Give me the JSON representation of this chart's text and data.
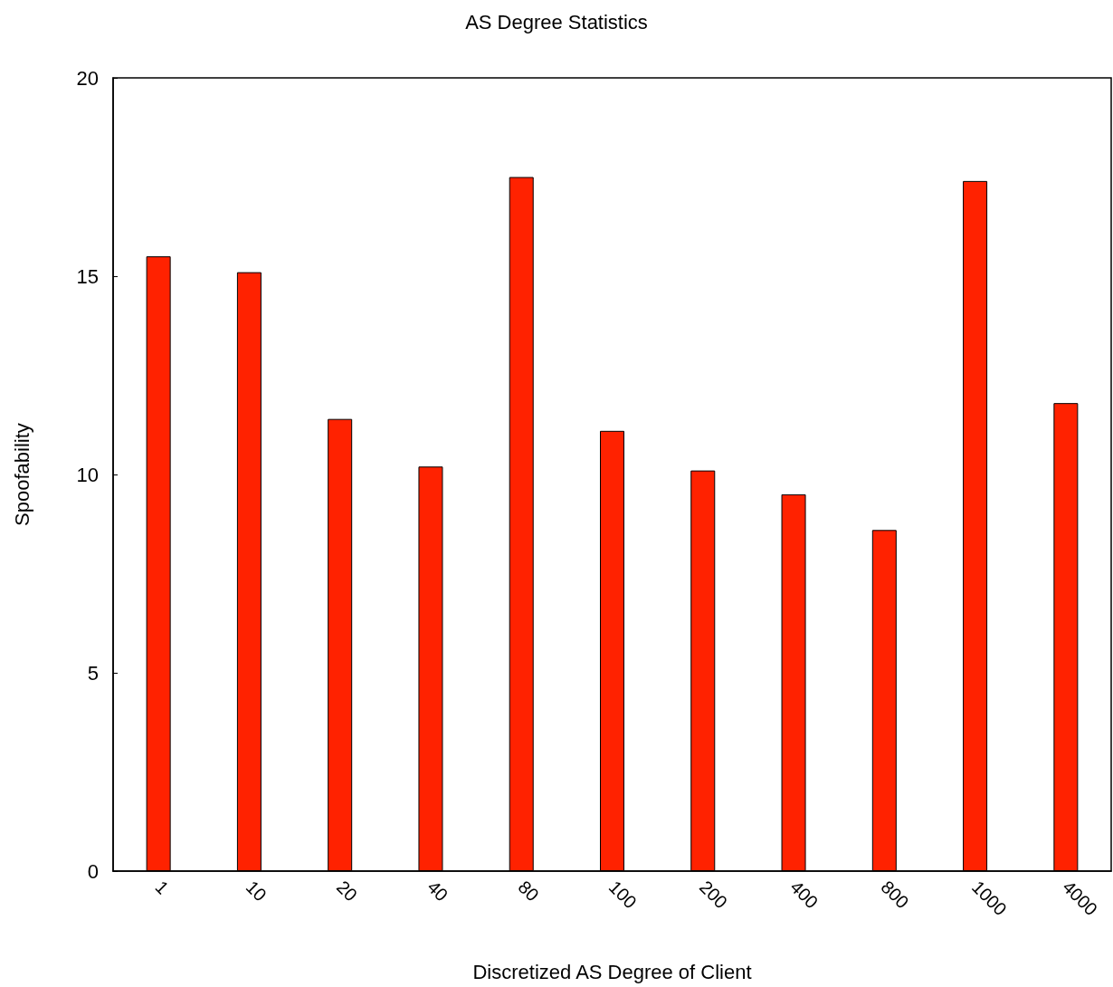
{
  "chart_data": {
    "type": "bar",
    "title": "AS Degree Statistics",
    "xlabel": "Discretized AS Degree of Client",
    "ylabel": "Spoofability",
    "categories": [
      "1",
      "10",
      "20",
      "40",
      "80",
      "100",
      "200",
      "400",
      "800",
      "1000",
      "4000"
    ],
    "values": [
      15.5,
      15.1,
      11.4,
      10.2,
      17.5,
      11.1,
      10.1,
      9.5,
      8.6,
      17.4,
      11.8
    ],
    "color": "#ff2200",
    "ylim": [
      0,
      20
    ],
    "yticks": [
      0,
      5,
      10,
      15,
      20
    ],
    "grid": false
  }
}
